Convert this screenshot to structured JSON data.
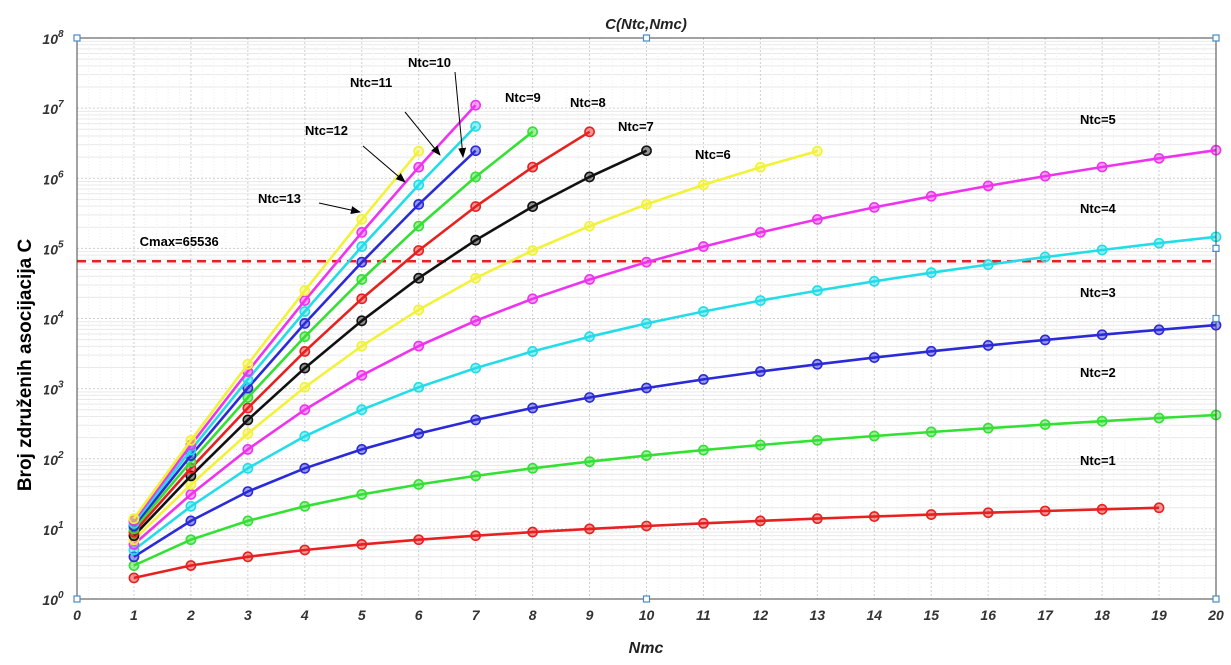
{
  "chart_data": {
    "type": "line",
    "title": "C(Ntc,Nmc)",
    "xlabel": "Nmc",
    "ylabel": "Broj združenih asocijacija C",
    "xlim": [
      0,
      20
    ],
    "ylim": [
      1,
      100000000
    ],
    "yscale": "log",
    "grid": true,
    "x_ticks": [
      "0",
      "1",
      "2",
      "3",
      "4",
      "5",
      "6",
      "7",
      "8",
      "9",
      "10",
      "11",
      "12",
      "13",
      "14",
      "15",
      "16",
      "17",
      "18",
      "19",
      "20"
    ],
    "y_ticks": [
      {
        "value": 1,
        "base": "10",
        "exp": "0"
      },
      {
        "value": 10,
        "base": "10",
        "exp": "1"
      },
      {
        "value": 100,
        "base": "10",
        "exp": "2"
      },
      {
        "value": 1000,
        "base": "10",
        "exp": "3"
      },
      {
        "value": 10000,
        "base": "10",
        "exp": "4"
      },
      {
        "value": 100000,
        "base": "10",
        "exp": "5"
      },
      {
        "value": 1000000,
        "base": "10",
        "exp": "6"
      },
      {
        "value": 10000000,
        "base": "10",
        "exp": "7"
      },
      {
        "value": 100000000,
        "base": "10",
        "exp": "8"
      }
    ],
    "reference_line": {
      "label": "Cmax=65536",
      "value": 65536,
      "color": "#e82020",
      "style": "dashed"
    },
    "series": [
      {
        "name": "Ntc=1",
        "color": "#e82020",
        "x": [
          1,
          2,
          3,
          4,
          5,
          6,
          7,
          8,
          9,
          10,
          11,
          12,
          13,
          14,
          15,
          16,
          17,
          18,
          19
        ],
        "y": [
          2,
          3,
          4,
          5,
          6,
          7,
          8,
          9,
          10,
          11,
          12,
          13,
          14,
          15,
          16,
          17,
          18,
          19,
          20
        ]
      },
      {
        "name": "Ntc=2",
        "color": "#33e033",
        "x": [
          1,
          2,
          3,
          4,
          5,
          6,
          7,
          8,
          9,
          10,
          11,
          12,
          13,
          14,
          15,
          16,
          17,
          18,
          19,
          20
        ],
        "y": [
          3,
          7,
          13,
          21,
          31,
          43,
          57,
          73,
          91,
          111,
          133,
          157,
          183,
          211,
          241,
          273,
          307,
          343,
          381,
          421
        ]
      },
      {
        "name": "Ntc=3",
        "color": "#2a2ad8",
        "x": [
          1,
          2,
          3,
          4,
          5,
          6,
          7,
          8,
          9,
          10,
          11,
          12,
          13,
          14,
          15,
          16,
          17,
          18,
          19,
          20
        ],
        "y": [
          4,
          13,
          34,
          73,
          136,
          229,
          358,
          529,
          748,
          1021,
          1354,
          1753,
          2224,
          2773,
          3406,
          4129,
          4948,
          5869,
          6898,
          8041
        ]
      },
      {
        "name": "Ntc=4",
        "color": "#22dde8",
        "x": [
          1,
          2,
          3,
          4,
          5,
          6,
          7,
          8,
          9,
          10,
          11,
          12,
          13,
          14,
          15,
          16,
          17,
          18,
          19,
          20
        ],
        "y": [
          5,
          21,
          73,
          209,
          501,
          1045,
          1961,
          3393,
          5509,
          8501,
          12585,
          18001,
          25013,
          33909,
          45001,
          58625,
          75141,
          94933,
          118409,
          146001
        ]
      },
      {
        "name": "Ntc=5",
        "color": "#ee33ee",
        "x": [
          1,
          2,
          3,
          4,
          5,
          6,
          7,
          8,
          9,
          10,
          11,
          12,
          13,
          14,
          15,
          16,
          17,
          18,
          19,
          20
        ],
        "y": [
          6,
          31,
          136,
          501,
          1546,
          4051,
          9276,
          19081,
          36046,
          63591,
          106096,
          169021,
          259026,
          384091,
          553636,
          778651,
          1071816,
          1447621,
          1922486,
          2514881
        ]
      },
      {
        "name": "Ntc=6",
        "color": "#f2f23a",
        "x": [
          1,
          2,
          3,
          4,
          5,
          6,
          7,
          8,
          9,
          10,
          11,
          12,
          13
        ],
        "y": [
          7,
          43,
          229,
          1045,
          4051,
          13327,
          37633,
          93289,
          207775,
          424051,
          804607,
          1436263,
          2435749
        ]
      },
      {
        "name": "Ntc=7",
        "color": "#111111",
        "x": [
          1,
          2,
          3,
          4,
          5,
          6,
          7,
          8,
          9,
          10
        ],
        "y": [
          8,
          57,
          358,
          1961,
          9276,
          37633,
          130922,
          394385,
          1044790,
          2468281
        ]
      },
      {
        "name": "Ntc=8",
        "color": "#e82020",
        "x": [
          1,
          2,
          3,
          4,
          5,
          6,
          7,
          8,
          9
        ],
        "y": [
          9,
          73,
          529,
          3393,
          19081,
          93289,
          394385,
          1441729,
          4596553
        ]
      },
      {
        "name": "Ntc=9",
        "color": "#33e033",
        "x": [
          1,
          2,
          3,
          4,
          5,
          6,
          7,
          8
        ],
        "y": [
          10,
          91,
          748,
          5509,
          36046,
          207775,
          1044790,
          4596553
        ]
      },
      {
        "name": "Ntc=10",
        "color": "#2a2ad8",
        "x": [
          1,
          2,
          3,
          4,
          5,
          6,
          7
        ],
        "y": [
          11,
          111,
          1021,
          8501,
          63591,
          424051,
          2468281
        ]
      },
      {
        "name": "Ntc=11",
        "color": "#22dde8",
        "x": [
          1,
          2,
          3,
          4,
          5,
          6,
          7
        ],
        "y": [
          12,
          133,
          1354,
          12585,
          106096,
          804607,
          5510733
        ]
      },
      {
        "name": "Ntc=12",
        "color": "#ee33ee",
        "x": [
          1,
          2,
          3,
          4,
          5,
          6,
          7
        ],
        "y": [
          13,
          157,
          1753,
          18001,
          169021,
          1436263,
          11027213
        ]
      },
      {
        "name": "Ntc=13",
        "color": "#f2f23a",
        "x": [
          1,
          2,
          3,
          4,
          5,
          6
        ],
        "y": [
          14,
          183,
          2224,
          25013,
          259026,
          2435749
        ]
      }
    ],
    "annotations": [
      {
        "text": "Ntc=1",
        "arrow": false
      },
      {
        "text": "Ntc=2",
        "arrow": false
      },
      {
        "text": "Ntc=3",
        "arrow": false
      },
      {
        "text": "Ntc=4",
        "arrow": false
      },
      {
        "text": "Ntc=5",
        "arrow": false
      },
      {
        "text": "Ntc=6",
        "arrow": false
      },
      {
        "text": "Ntc=7",
        "arrow": false
      },
      {
        "text": "Ntc=8",
        "arrow": false
      },
      {
        "text": "Ntc=9",
        "arrow": false
      },
      {
        "text": "Ntc=10",
        "arrow": true
      },
      {
        "text": "Ntc=11",
        "arrow": true
      },
      {
        "text": "Ntc=12",
        "arrow": true
      },
      {
        "text": "Ntc=13",
        "arrow": true
      }
    ]
  }
}
